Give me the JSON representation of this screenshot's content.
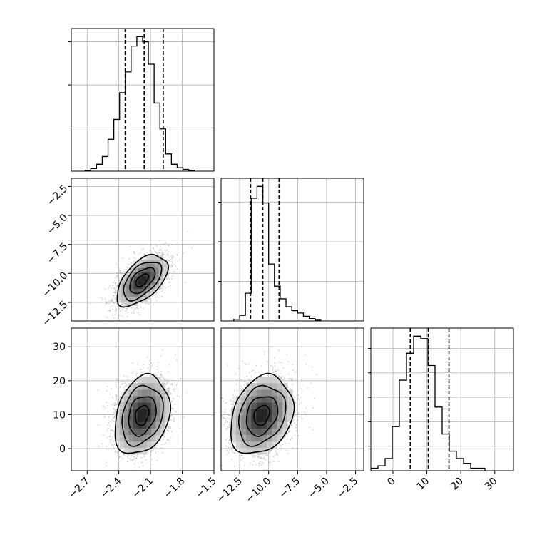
{
  "chart_data": {
    "type": "corner",
    "colors": {
      "line": "#000000",
      "grid": "#b0b0b0",
      "points": "#9a9a9a"
    },
    "grid": true,
    "parameters": [
      {
        "index": 0,
        "range": [
          -2.85,
          -1.5
        ],
        "ticks": [
          "-2.7",
          "-2.4",
          "-2.1",
          "-1.8",
          "-1.5"
        ],
        "tick_values": [
          -2.7,
          -2.4,
          -2.1,
          -1.8,
          -1.5
        ]
      },
      {
        "index": 1,
        "range": [
          -14.1,
          -1.8
        ],
        "ticks": [
          "-12.5",
          "-10.0",
          "-7.5",
          "-5.0",
          "-2.5"
        ],
        "tick_values": [
          -12.5,
          -10.0,
          -7.5,
          -5.0,
          -2.5
        ]
      },
      {
        "index": 2,
        "range": [
          -6.5,
          35.5
        ],
        "ticks": [
          "0",
          "10",
          "20",
          "30"
        ],
        "tick_values": [
          0,
          10,
          20,
          30
        ]
      }
    ],
    "histograms": [
      {
        "param": 0,
        "quantiles": [
          -2.34,
          -2.16,
          -1.98
        ],
        "bins_start": -2.72,
        "bin_width": 0.0545,
        "counts": [
          1,
          3,
          8,
          17,
          37,
          60,
          91,
          115,
          145,
          156,
          150,
          124,
          79,
          49,
          20,
          8,
          4,
          2,
          1
        ]
      },
      {
        "param": 1,
        "quantiles": [
          -11.55,
          -10.5,
          -9.1
        ],
        "bins_start": -13.0,
        "bin_width": 0.5,
        "counts": [
          2,
          7,
          35,
          155,
          170,
          149,
          72,
          44,
          28,
          18,
          13,
          10,
          6,
          3,
          1
        ]
      },
      {
        "param": 2,
        "quantiles": [
          5.1,
          10.4,
          16.5
        ],
        "bins_start": -6.5,
        "bin_width": 2.1,
        "counts": [
          1,
          2,
          5,
          18,
          37,
          48,
          55,
          54,
          43,
          26,
          15,
          8,
          5,
          3,
          1,
          1
        ]
      }
    ],
    "scatter_pairs": [
      {
        "x": 0,
        "y": 1,
        "center": [
          -2.18,
          -10.6
        ],
        "sd": [
          0.12,
          1.1
        ],
        "rho": 0.55,
        "n_points": 2500,
        "contour_levels": [
          0.5,
          1.0,
          1.5,
          2.0
        ]
      },
      {
        "x": 0,
        "y": 2,
        "center": [
          -2.18,
          9.8
        ],
        "sd": [
          0.13,
          5.8
        ],
        "rho": 0.25,
        "n_points": 2500,
        "contour_levels": [
          0.5,
          1.0,
          1.5,
          2.0
        ]
      },
      {
        "x": 1,
        "y": 2,
        "center": [
          -10.6,
          9.8
        ],
        "sd": [
          1.35,
          5.8
        ],
        "rho": 0.25,
        "n_points": 2500,
        "contour_levels": [
          0.5,
          1.0,
          1.5,
          2.0
        ]
      }
    ]
  }
}
